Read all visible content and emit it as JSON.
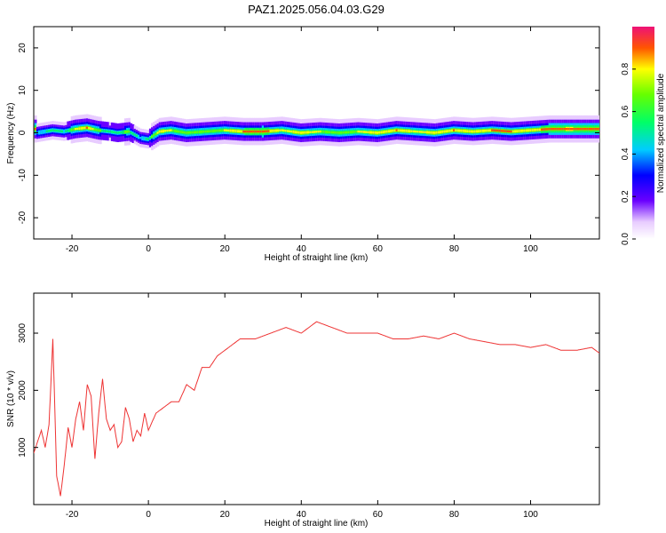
{
  "chart_data": [
    {
      "type": "heatmap",
      "title": "PAZ1.2025.056.04.03.G29",
      "xlabel": "Height of straight line (km)",
      "ylabel": "Frequency (Hz)",
      "xlim": [
        -30,
        118
      ],
      "ylim": [
        -25,
        25
      ],
      "xticks": [
        -20,
        0,
        20,
        40,
        60,
        80,
        100
      ],
      "yticks": [
        -20,
        -10,
        0,
        10,
        20
      ],
      "colorbar": {
        "label": "Normalized spectral amplitude",
        "range": [
          0,
          1
        ],
        "ticks": [
          "0.0",
          "0.2",
          "0.4",
          "0.6",
          "0.8"
        ]
      },
      "ridge": {
        "x": [
          -29,
          -25,
          -22,
          -19,
          -16,
          -13,
          -10,
          -8,
          -5,
          -2,
          0,
          3,
          6,
          10,
          15,
          20,
          25,
          30,
          35,
          40,
          45,
          50,
          55,
          60,
          65,
          70,
          75,
          80,
          85,
          90,
          95,
          100,
          105,
          110,
          117
        ],
        "y": [
          0,
          0.6,
          0.3,
          0.9,
          1.2,
          0.6,
          0.3,
          0,
          0.3,
          -1.2,
          -1.5,
          0.3,
          0.6,
          0,
          0.3,
          0.6,
          0.3,
          0.3,
          0.6,
          0,
          0.3,
          0,
          0.3,
          0,
          0.6,
          0.3,
          0,
          0.6,
          0.3,
          0.6,
          0.3,
          0.6,
          0.9,
          0.9,
          0.9
        ],
        "peak_amplitude": [
          0.5,
          0.6,
          0.55,
          0.8,
          0.9,
          0.7,
          0.6,
          0.65,
          0.7,
          0.5,
          0.6,
          0.85,
          0.8,
          0.7,
          0.75,
          0.8,
          0.9,
          0.95,
          0.8,
          0.85,
          0.8,
          0.75,
          0.8,
          0.85,
          0.9,
          0.8,
          0.85,
          0.9,
          0.85,
          0.9,
          0.9,
          0.85,
          0.95,
          0.98,
          0.95
        ]
      }
    },
    {
      "type": "line",
      "xlabel": "Height of straight line (km)",
      "ylabel": "SNR (10 * v/v)",
      "xlim": [
        -30,
        118
      ],
      "ylim": [
        0,
        3700
      ],
      "xticks": [
        -20,
        0,
        20,
        40,
        60,
        80,
        100
      ],
      "yticks": [
        1000,
        2000,
        3000
      ],
      "color": "#ee3333",
      "series": [
        {
          "x": [
            -30,
            -28,
            -27,
            -26,
            -25,
            -24,
            -23,
            -22,
            -21,
            -20,
            -19,
            -18,
            -17,
            -16,
            -15,
            -14,
            -13,
            -12,
            -11,
            -10,
            -9,
            -8,
            -7,
            -6,
            -5,
            -4,
            -3,
            -2,
            -1,
            0,
            2,
            4,
            6,
            8,
            10,
            12,
            14,
            16,
            18,
            20,
            24,
            28,
            32,
            36,
            40,
            44,
            48,
            52,
            56,
            60,
            64,
            68,
            72,
            76,
            80,
            84,
            88,
            92,
            96,
            100,
            104,
            108,
            112,
            116,
            118
          ],
          "y": [
            900,
            1300,
            1000,
            1400,
            2900,
            500,
            150,
            700,
            1350,
            1000,
            1500,
            1800,
            1300,
            2100,
            1900,
            800,
            1600,
            2200,
            1500,
            1300,
            1400,
            1000,
            1100,
            1700,
            1500,
            1100,
            1300,
            1200,
            1600,
            1300,
            1600,
            1700,
            1800,
            1800,
            2100,
            2000,
            2400,
            2400,
            2600,
            2700,
            2900,
            2900,
            3000,
            3100,
            3000,
            3200,
            3100,
            3000,
            3000,
            3000,
            2900,
            2900,
            2950,
            2900,
            3000,
            2900,
            2850,
            2800,
            2800,
            2750,
            2800,
            2700,
            2700,
            2750,
            2650
          ]
        }
      ]
    }
  ]
}
